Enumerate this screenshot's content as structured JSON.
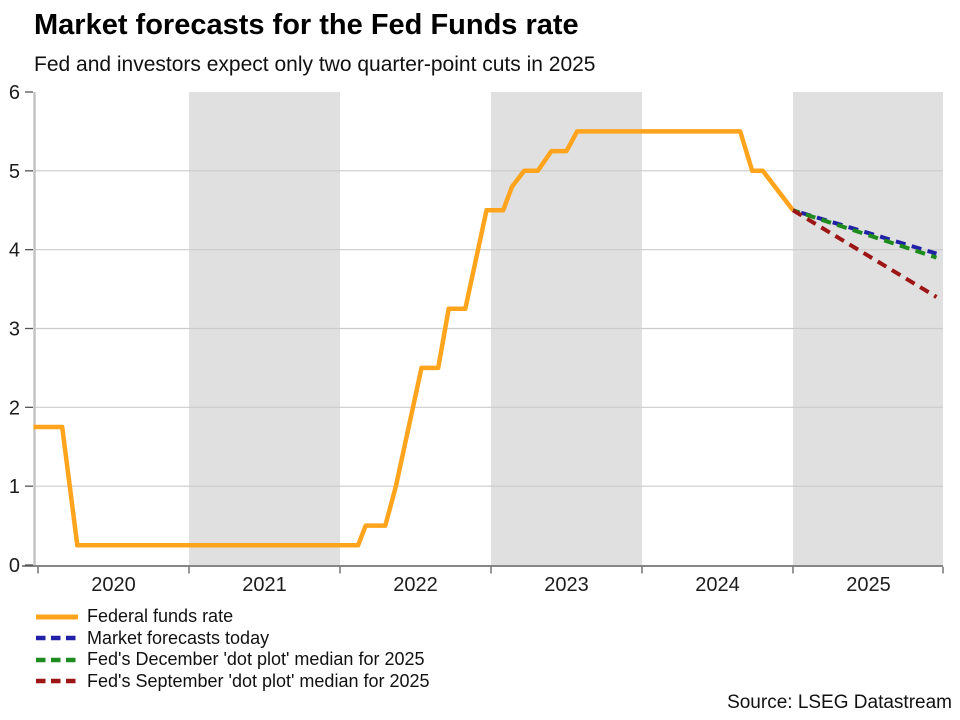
{
  "colors": {
    "background": "#ffffff",
    "band": "#e0e0e0",
    "grid": "#cbcbcb",
    "y_axis_line": "#c2c2c2",
    "x_axis_line": "#5f5f5f",
    "tick": "#555555",
    "label_text": "#1c1c1c",
    "orange": "#ffa41c",
    "blue": "#2121a8",
    "green": "#1e8b1e",
    "dark_red": "#9d1616"
  },
  "source_note": "Source: LSEG Datastream",
  "chart_data": {
    "type": "line",
    "title": "Market forecasts for the Fed Funds rate",
    "subtitle": "Fed and investors expect only two quarter-point cuts in 2025",
    "xlabel": "",
    "ylabel": "",
    "ylim": [
      0,
      6
    ],
    "y_ticks": [
      0,
      1,
      2,
      3,
      4,
      5,
      6
    ],
    "x_range": [
      2019.97,
      2026.0
    ],
    "x_tick_labels": [
      "2020",
      "2021",
      "2022",
      "2023",
      "2024",
      "2025"
    ],
    "x_tick_label_years": [
      2020,
      2021,
      2022,
      2023,
      2024,
      2025
    ],
    "shaded_year_bands": [
      [
        2021,
        2022
      ],
      [
        2023,
        2024
      ],
      [
        2025,
        2026
      ]
    ],
    "grid": "horizontal",
    "legend_position": "bottom-left",
    "series": [
      {
        "name": "Federal funds rate",
        "color": "#ffa41c",
        "style": "solid",
        "points": [
          [
            2019.97,
            1.75
          ],
          [
            2020.16,
            1.75
          ],
          [
            2020.26,
            0.25
          ],
          [
            2022.12,
            0.25
          ],
          [
            2022.17,
            0.5
          ],
          [
            2022.3,
            0.5
          ],
          [
            2022.37,
            1.0
          ],
          [
            2022.54,
            2.5
          ],
          [
            2022.65,
            2.5
          ],
          [
            2022.72,
            3.25
          ],
          [
            2022.83,
            3.25
          ],
          [
            2022.97,
            4.5
          ],
          [
            2023.08,
            4.5
          ],
          [
            2023.14,
            4.8
          ],
          [
            2023.22,
            5.0
          ],
          [
            2023.31,
            5.0
          ],
          [
            2023.4,
            5.25
          ],
          [
            2023.5,
            5.25
          ],
          [
            2023.57,
            5.5
          ],
          [
            2024.65,
            5.5
          ],
          [
            2024.73,
            5.0
          ],
          [
            2024.8,
            5.0
          ],
          [
            2025.0,
            4.5
          ]
        ]
      },
      {
        "name": "Market forecasts today",
        "color": "#2121a8",
        "style": "dashed",
        "points": [
          [
            2025.0,
            4.5
          ],
          [
            2025.95,
            3.95
          ]
        ]
      },
      {
        "name": "Fed's December 'dot plot' median for 2025",
        "color": "#1e8b1e",
        "style": "dashed",
        "points": [
          [
            2025.0,
            4.5
          ],
          [
            2025.95,
            3.9
          ]
        ]
      },
      {
        "name": "Fed's September 'dot plot' median for 2025",
        "color": "#9d1616",
        "style": "dashed",
        "points": [
          [
            2025.0,
            4.5
          ],
          [
            2025.95,
            3.4
          ]
        ]
      }
    ]
  }
}
